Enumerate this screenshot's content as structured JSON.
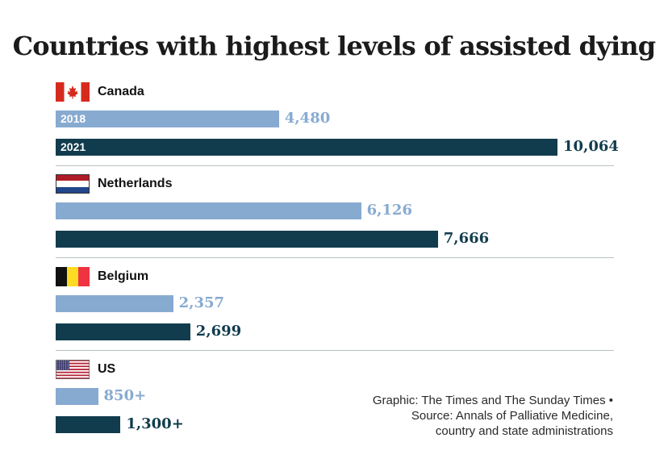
{
  "title": "Countries with highest levels of assisted dying",
  "colors": {
    "y2018": "#87aad1",
    "y2021": "#113c4d",
    "divider": "#b8c0c4"
  },
  "chart_data": {
    "type": "bar",
    "orientation": "horizontal",
    "title": "Countries with highest levels of assisted dying",
    "categories": [
      "Canada",
      "Netherlands",
      "Belgium",
      "US"
    ],
    "series": [
      {
        "name": "2018",
        "values": [
          4480,
          6126,
          2357,
          850
        ]
      },
      {
        "name": "2021",
        "values": [
          10064,
          7666,
          2699,
          1300
        ]
      }
    ],
    "value_labels": [
      [
        "4,480",
        "10,064"
      ],
      [
        "6,126",
        "7,666"
      ],
      [
        "2,357",
        "2,699"
      ],
      [
        "850+",
        "1,300+"
      ]
    ],
    "legend": "none",
    "grid": false
  },
  "countries": [
    {
      "name": "Canada",
      "flag_icon": "canada-flag-icon",
      "show_years": true
    },
    {
      "name": "Netherlands",
      "flag_icon": "netherlands-flag-icon",
      "show_years": false
    },
    {
      "name": "Belgium",
      "flag_icon": "belgium-flag-icon",
      "show_years": false
    },
    {
      "name": "US",
      "flag_icon": "us-flag-icon",
      "show_years": false
    }
  ],
  "credit": {
    "line1": "Graphic: The Times and The Sunday Times •",
    "line2": "Source: Annals of Palliative Medicine,",
    "line3": "country and state administrations"
  }
}
